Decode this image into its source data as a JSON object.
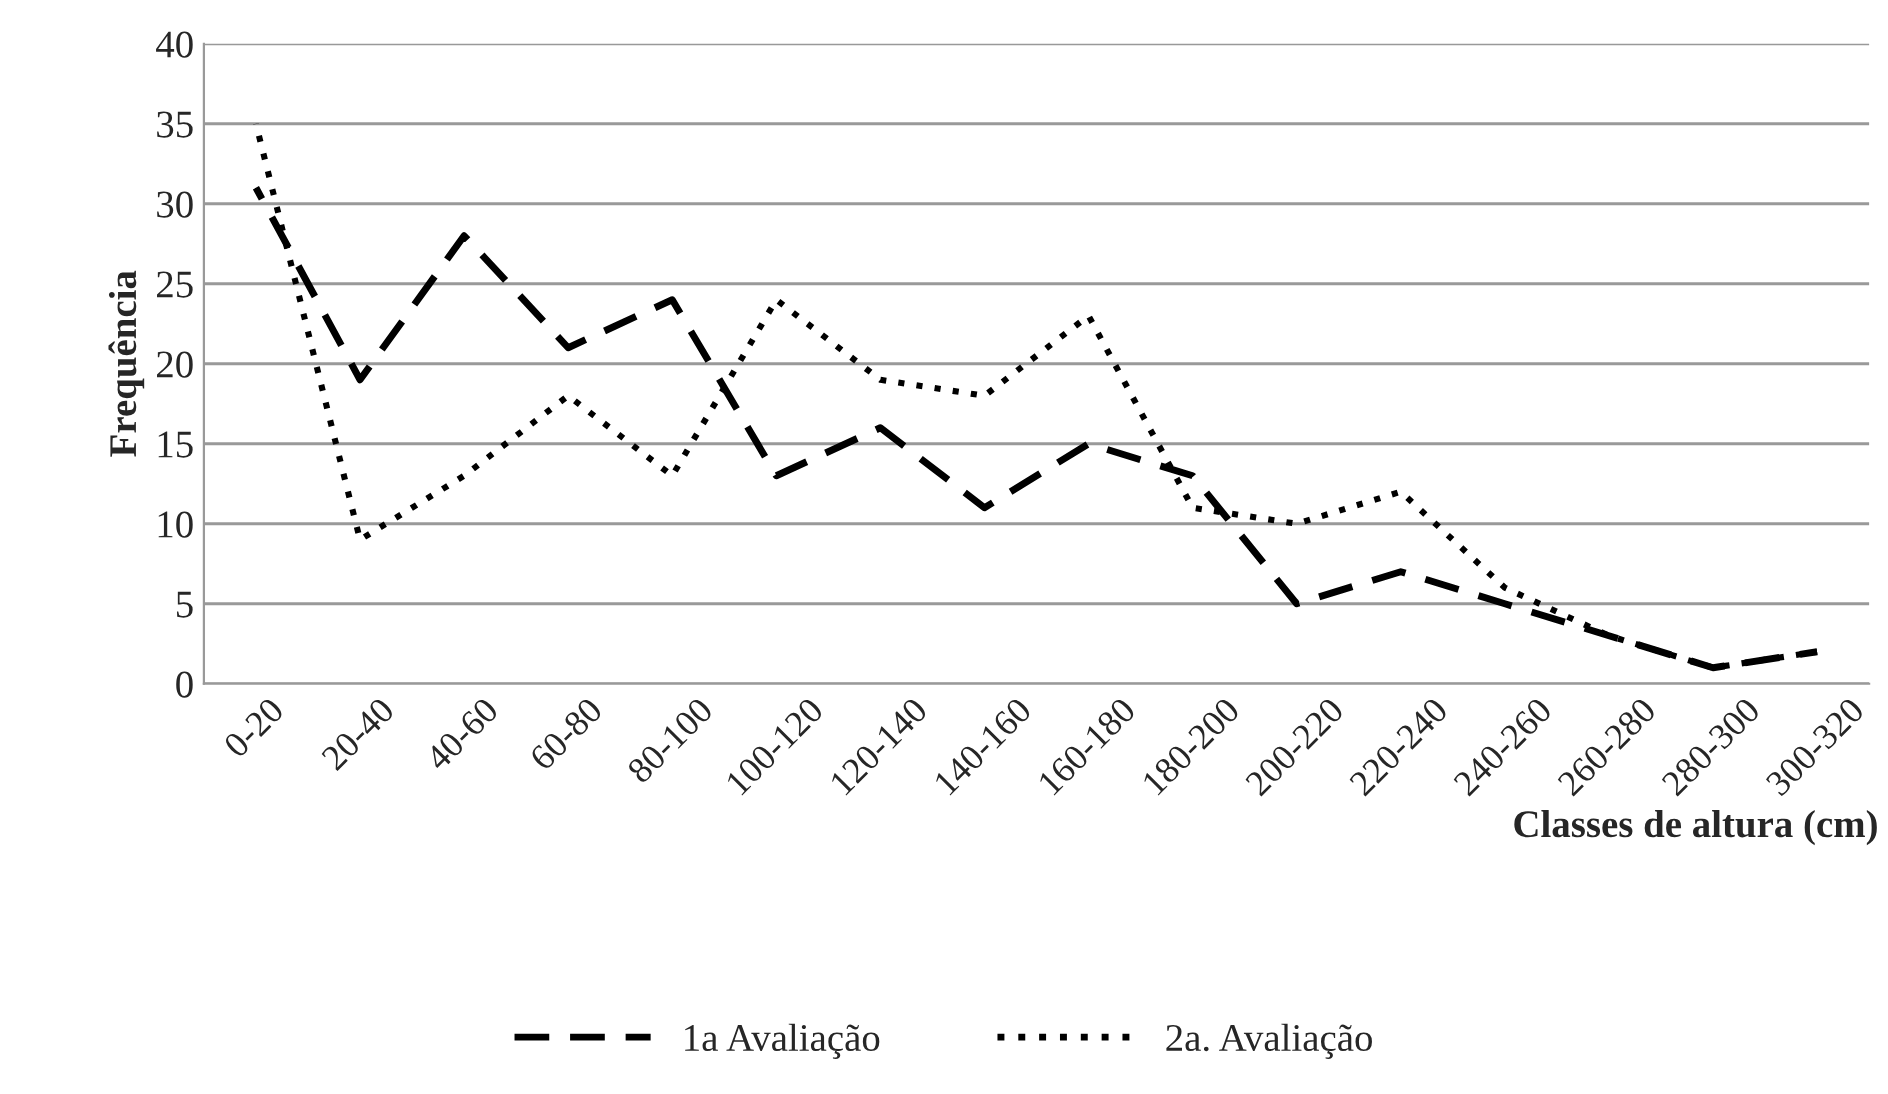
{
  "chart_data": {
    "type": "line",
    "xlabel": "Classes de altura (cm)",
    "ylabel": "Frequência",
    "categories": [
      "0-20",
      "20-40",
      "40-60",
      "60-80",
      "80-100",
      "100-120",
      "120-140",
      "140-160",
      "160-180",
      "180-200",
      "200-220",
      "220-240",
      "240-260",
      "260-280",
      "280-300",
      "300-320"
    ],
    "series": [
      {
        "name": "1a Avaliação",
        "color": "#000000",
        "line_style": "dashed",
        "values": [
          31,
          19,
          28,
          21,
          24,
          13,
          16,
          11,
          15,
          13,
          5,
          7,
          5,
          3,
          1,
          2
        ]
      },
      {
        "name": "2a. Avaliação",
        "color": "#000000",
        "line_style": "dotted",
        "values": [
          35,
          9,
          13,
          18,
          13,
          24,
          19,
          18,
          23,
          11,
          10,
          12,
          6,
          3,
          1,
          2
        ]
      }
    ],
    "ylim": [
      0,
      40
    ],
    "yticks": [
      0,
      5,
      10,
      15,
      20,
      25,
      30,
      35,
      40
    ],
    "grid": "y",
    "legend": "bottom",
    "marker": "none"
  }
}
